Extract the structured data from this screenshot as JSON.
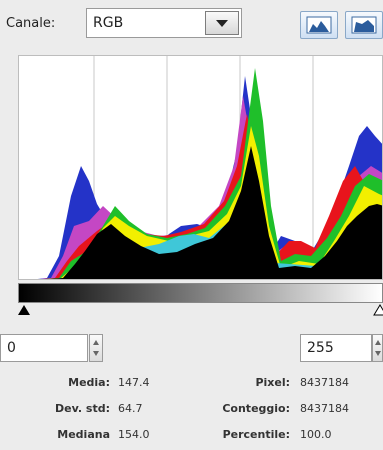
{
  "channel": {
    "label": "Canale:",
    "value": "RGB"
  },
  "range": {
    "low": "0",
    "high": "255"
  },
  "stats": {
    "mean_label": "Media:",
    "mean_value": "147.4",
    "stddev_label": "Dev. std:",
    "stddev_value": "64.7",
    "median_label": "Mediana",
    "median_value": "154.0",
    "pixels_label": "Pixel:",
    "pixels_value": "8437184",
    "count_label": "Conteggio:",
    "count_value": "8437184",
    "percentile_label": "Percentile:",
    "percentile_value": "100.0"
  },
  "icons": {
    "linear": "linear-histogram-icon",
    "log": "log-histogram-icon",
    "dropdown": "chevron-down-icon"
  },
  "colors": {
    "red": "#e8141c",
    "green": "#1fbf2a",
    "blue": "#2433c8",
    "yellow": "#f2ef00",
    "magenta": "#c447c4",
    "cyan": "#3fc7d8",
    "black": "#000000"
  }
}
